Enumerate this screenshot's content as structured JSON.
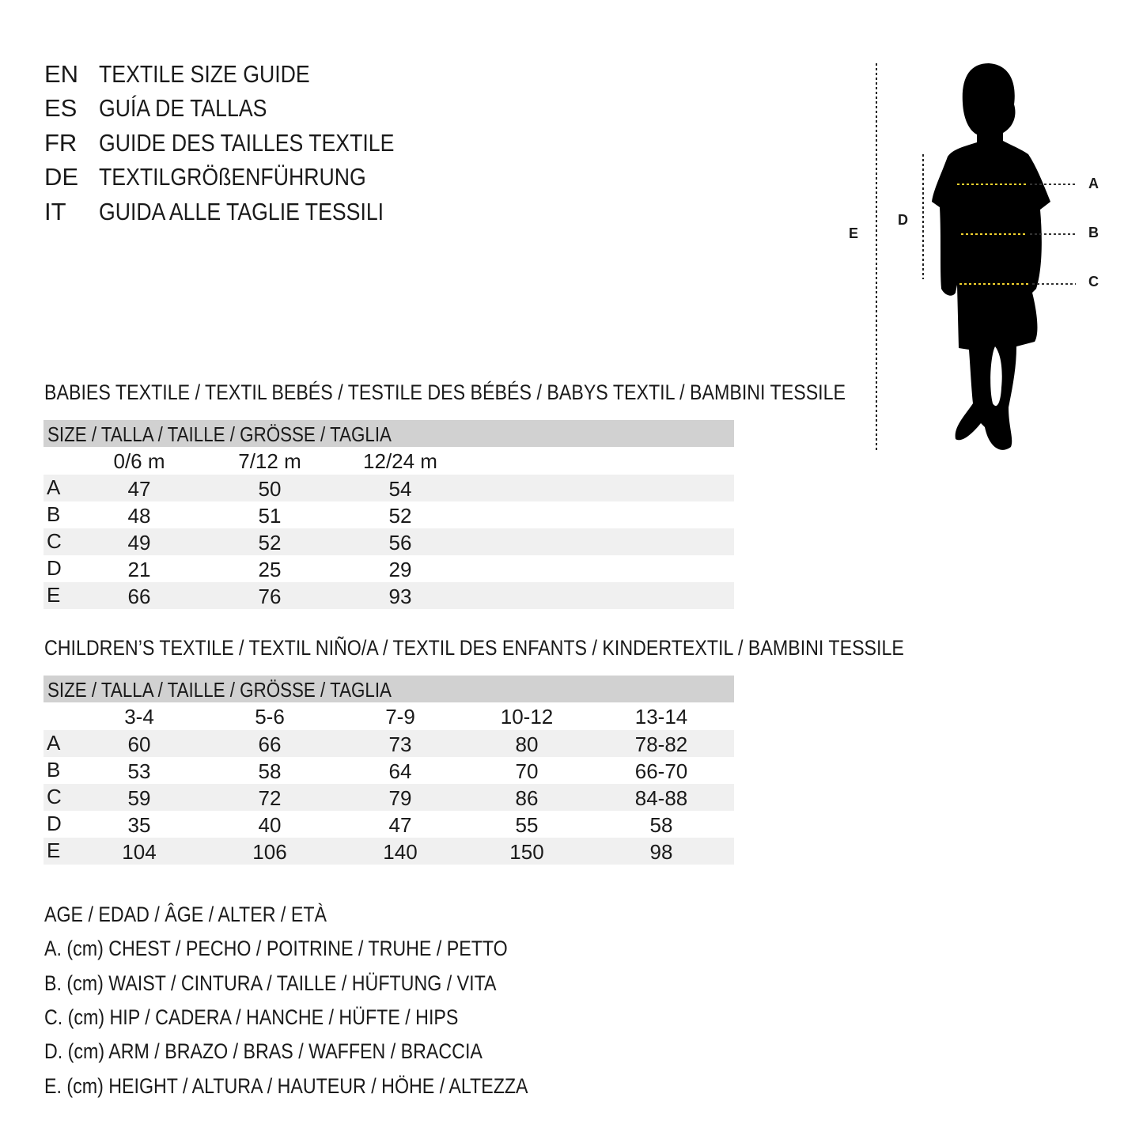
{
  "titles": [
    {
      "code": "EN",
      "text": "TEXTILE SIZE GUIDE"
    },
    {
      "code": "ES",
      "text": "GUÍA DE TALLAS"
    },
    {
      "code": "FR",
      "text": "GUIDE DES TAILLES TEXTILE"
    },
    {
      "code": "DE",
      "text": "TEXTILGRÖßENFÜHRUNG"
    },
    {
      "code": "IT",
      "text": "GUIDA ALLE TAGLIE TESSILI"
    }
  ],
  "figure": {
    "labels": {
      "A": "A",
      "B": "B",
      "C": "C",
      "D": "D",
      "E": "E"
    },
    "measure_line_color": "#f2d22e"
  },
  "babies": {
    "title": "BABIES TEXTILE / TEXTIL BEBÉS / TESTILE DES BÉBÉS / BABYS TEXTIL / BAMBINI TESSILE",
    "size_header": "SIZE / TALLA / TAILLE / GRÖSSE / TAGLIA",
    "columns": [
      "0/6 m",
      "7/12 m",
      "12/24 m"
    ],
    "rows": [
      {
        "label": "A",
        "values": [
          "47",
          "50",
          "54"
        ]
      },
      {
        "label": "B",
        "values": [
          "48",
          "51",
          "52"
        ]
      },
      {
        "label": "C",
        "values": [
          "49",
          "52",
          "56"
        ]
      },
      {
        "label": "D",
        "values": [
          "21",
          "25",
          "29"
        ]
      },
      {
        "label": "E",
        "values": [
          "66",
          "76",
          "93"
        ]
      }
    ]
  },
  "children": {
    "title": "CHILDREN’S TEXTILE / TEXTIL NIÑO/A / TEXTIL DES ENFANTS / KINDERTEXTIL / BAMBINI TESSILE",
    "size_header": "SIZE / TALLA / TAILLE / GRÖSSE / TAGLIA",
    "columns": [
      "3-4",
      "5-6",
      "7-9",
      "10-12",
      "13-14"
    ],
    "rows": [
      {
        "label": "A",
        "values": [
          "60",
          "66",
          "73",
          "80",
          "78-82"
        ]
      },
      {
        "label": "B",
        "values": [
          "53",
          "58",
          "64",
          "70",
          "66-70"
        ]
      },
      {
        "label": "C",
        "values": [
          "59",
          "72",
          "79",
          "86",
          "84-88"
        ]
      },
      {
        "label": "D",
        "values": [
          "35",
          "40",
          "47",
          "55",
          "58"
        ]
      },
      {
        "label": "E",
        "values": [
          "104",
          "106",
          "140",
          "150",
          "98"
        ]
      }
    ]
  },
  "legend": [
    "AGE / EDAD / ÂGE / ALTER / ETÀ",
    "A. (cm) CHEST / PECHO / POITRINE / TRUHE / PETTO",
    "B. (cm) WAIST / CINTURA / TAILLE / HÜFTUNG / VITA",
    "C. (cm) HIP / CADERA / HANCHE / HÜFTE / HIPS",
    "D. (cm) ARM / BRAZO / BRAS / WAFFEN / BRACCIA",
    "E. (cm) HEIGHT / ALTURA / HAUTEUR / HÖHE / ALTEZZA"
  ]
}
